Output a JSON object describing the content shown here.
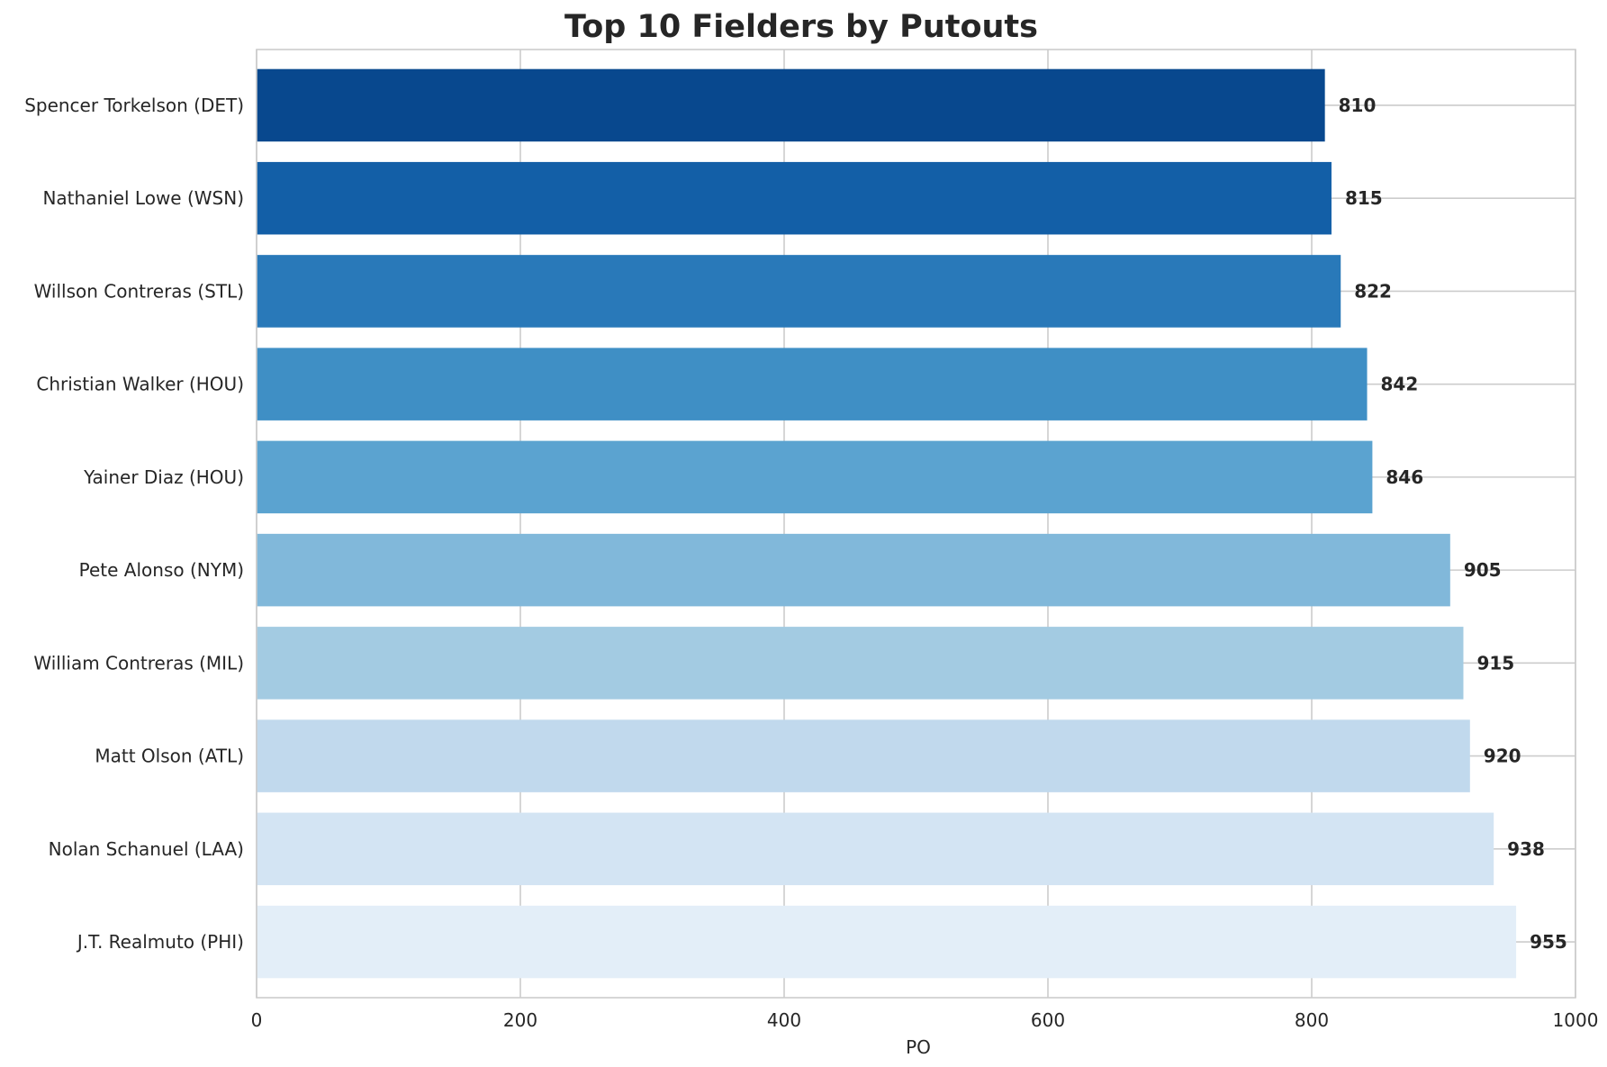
{
  "chart_data": {
    "type": "bar",
    "orientation": "horizontal",
    "title": "Top 10 Fielders by Putouts",
    "xlabel": "PO",
    "ylabel": "",
    "xlim": [
      0,
      1000
    ],
    "xticks": [
      "0",
      "200",
      "400",
      "600",
      "800",
      "1000"
    ],
    "grid": true,
    "categories": [
      "Spencer Torkelson (DET)",
      "Nathaniel Lowe (WSN)",
      "Willson Contreras (STL)",
      "Christian Walker (HOU)",
      "Yainer Diaz (HOU)",
      "Pete Alonso (NYM)",
      "William Contreras (MIL)",
      "Matt Olson (ATL)",
      "Nolan Schanuel (LAA)",
      "J.T. Realmuto (PHI)"
    ],
    "values": [
      810,
      815,
      822,
      842,
      846,
      905,
      915,
      920,
      938,
      955
    ],
    "data_labels": [
      "810",
      "815",
      "822",
      "842",
      "846",
      "905",
      "915",
      "920",
      "938",
      "955"
    ],
    "colors": [
      "#08488e",
      "#135fa7",
      "#2979b9",
      "#3f8fc5",
      "#5ba3d0",
      "#81b8da",
      "#a3cbe2",
      "#c1d9ed",
      "#d3e4f3",
      "#e3eef8"
    ]
  }
}
